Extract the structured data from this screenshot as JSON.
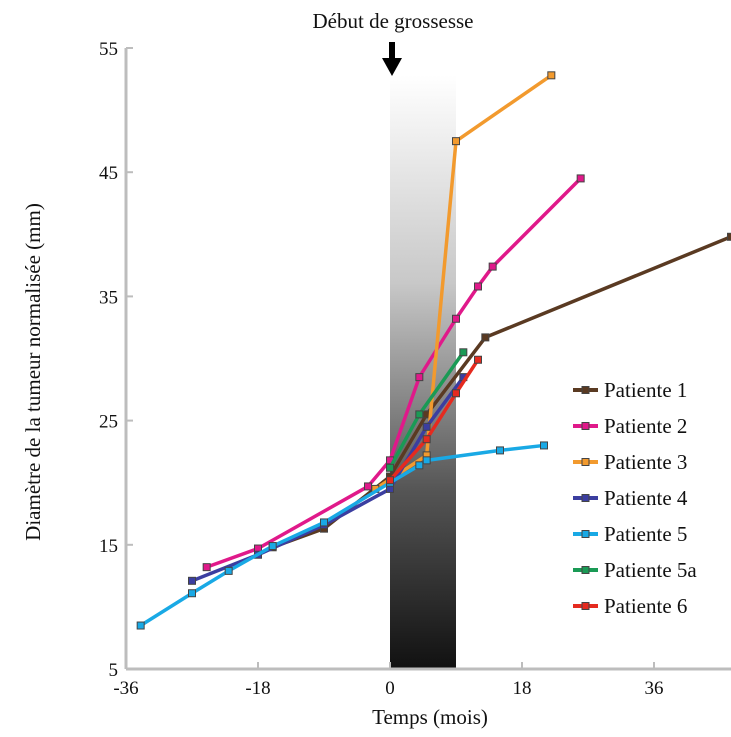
{
  "chart_data": {
    "type": "line",
    "xlabel": "Temps (mois)",
    "ylabel": "Diamètre de la tumeur normalisée (mm)",
    "annotation": "Début de grossesse",
    "xlim": [
      -36,
      46.5
    ],
    "ylim": [
      5,
      55
    ],
    "x_ticks": [
      -36,
      -18,
      0,
      18,
      36
    ],
    "y_ticks": [
      5,
      15,
      25,
      35,
      45,
      55
    ],
    "pregnancy_window": [
      0,
      9
    ],
    "series": [
      {
        "name": "Patiente 1",
        "color": "#5a3a22",
        "points": [
          [
            -16,
            14.8
          ],
          [
            -9,
            16.3
          ],
          [
            0,
            20.5
          ],
          [
            5,
            25.5
          ],
          [
            13,
            31.7
          ],
          [
            46.5,
            39.8
          ]
        ]
      },
      {
        "name": "Patiente 2",
        "color": "#e0198a",
        "points": [
          [
            -25,
            13.2
          ],
          [
            -18,
            14.7
          ],
          [
            -3,
            19.7
          ],
          [
            0,
            21.8
          ],
          [
            4,
            28.5
          ],
          [
            9,
            33.2
          ],
          [
            12,
            35.8
          ],
          [
            14,
            37.4
          ],
          [
            26,
            44.5
          ]
        ]
      },
      {
        "name": "Patiente 3",
        "color": "#f29a2e",
        "points": [
          [
            -2,
            19.5
          ],
          [
            5,
            22.2
          ],
          [
            9,
            47.5
          ],
          [
            22,
            52.8
          ]
        ]
      },
      {
        "name": "Patiente 4",
        "color": "#3b3ea0",
        "points": [
          [
            -27,
            12.1
          ],
          [
            -18,
            14.2
          ],
          [
            -9,
            16.6
          ],
          [
            0,
            19.5
          ],
          [
            5,
            24.5
          ],
          [
            10,
            28.5
          ]
        ]
      },
      {
        "name": "Patiente 5",
        "color": "#19a9e5",
        "points": [
          [
            -34,
            8.5
          ],
          [
            -27,
            11.1
          ],
          [
            -22,
            12.9
          ],
          [
            -16,
            14.9
          ],
          [
            -9,
            16.8
          ],
          [
            0,
            20.0
          ],
          [
            4,
            21.4
          ],
          [
            5,
            21.8
          ],
          [
            15,
            22.6
          ],
          [
            21,
            23.0
          ]
        ]
      },
      {
        "name": "Patiente 5a",
        "color": "#1a9a55",
        "points": [
          [
            0,
            21.2
          ],
          [
            4,
            25.5
          ],
          [
            10,
            30.5
          ]
        ]
      },
      {
        "name": "Patiente 6",
        "color": "#e52a1f",
        "points": [
          [
            0,
            20.2
          ],
          [
            5,
            23.5
          ],
          [
            9,
            27.2
          ],
          [
            12,
            29.9
          ]
        ]
      }
    ],
    "legend_position": "right"
  }
}
